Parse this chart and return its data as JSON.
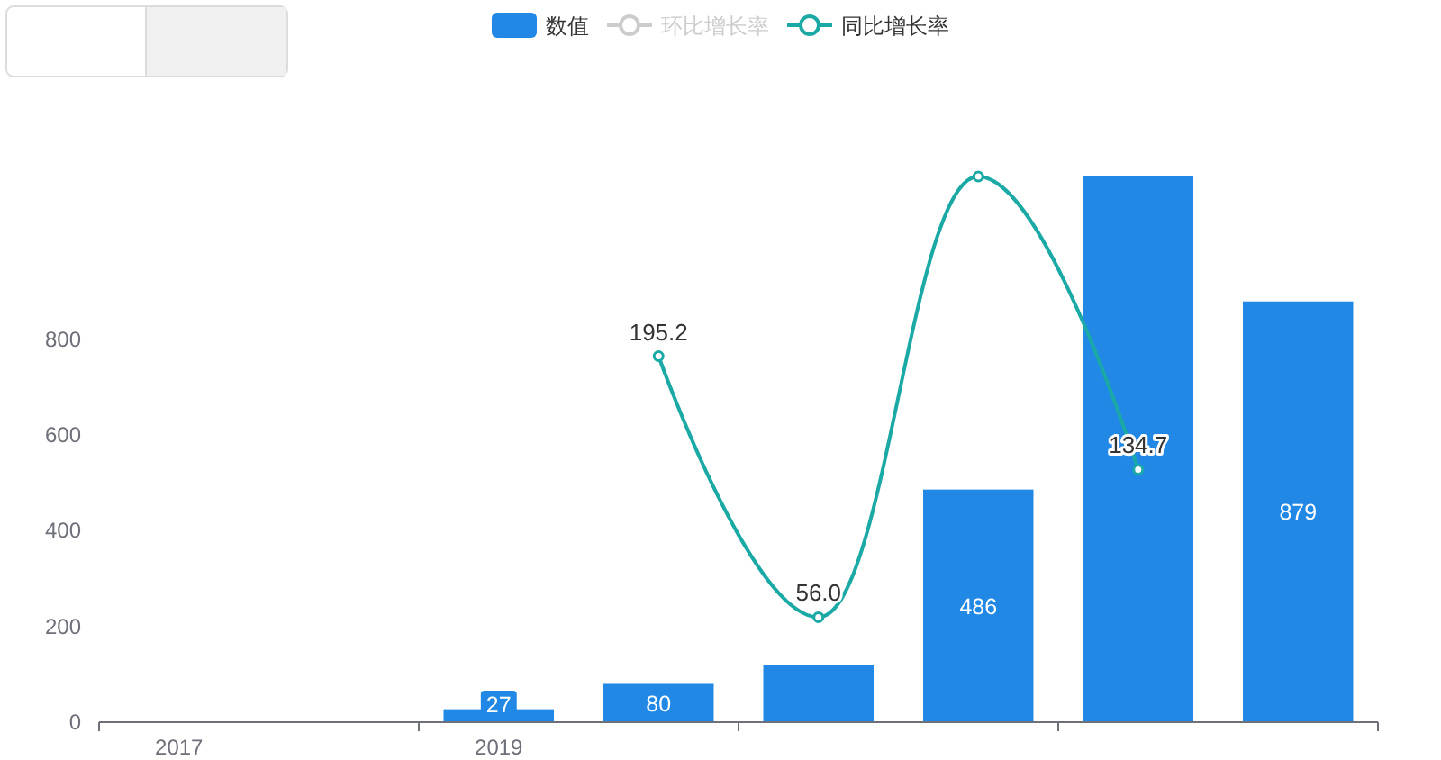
{
  "chart_data": {
    "type": "bar",
    "legend": "top",
    "marker": "circle",
    "tick_labels": "xy",
    "categories": [
      "2017",
      null,
      "2019",
      null,
      null,
      null,
      null,
      null
    ],
    "ylim": [
      0,
      1140
    ],
    "yticks": [
      0,
      200,
      400,
      600,
      800
    ],
    "y2lim": [
      0,
      291
    ],
    "series": [
      {
        "name": "数值",
        "color": "#2188e5",
        "values": [
          null,
          null,
          27,
          80,
          120,
          486,
          1140,
          879
        ],
        "value_labels": [
          null,
          null,
          "27",
          "80",
          null,
          "486",
          null,
          "879"
        ]
      },
      {
        "name": "环比增长率",
        "type": "line",
        "axis": "y2",
        "color": "#cccccc",
        "values": [
          null,
          null,
          null,
          null,
          null,
          null,
          null,
          null
        ]
      },
      {
        "name": "同比增长率",
        "type": "line",
        "axis": "y2",
        "color": "#1aa9a5",
        "values": [
          null,
          null,
          null,
          195.2,
          56.0,
          291,
          134.7,
          null
        ],
        "value_labels": [
          null,
          null,
          null,
          "195.2",
          "56.0",
          null,
          "134.7",
          null
        ]
      }
    ]
  }
}
